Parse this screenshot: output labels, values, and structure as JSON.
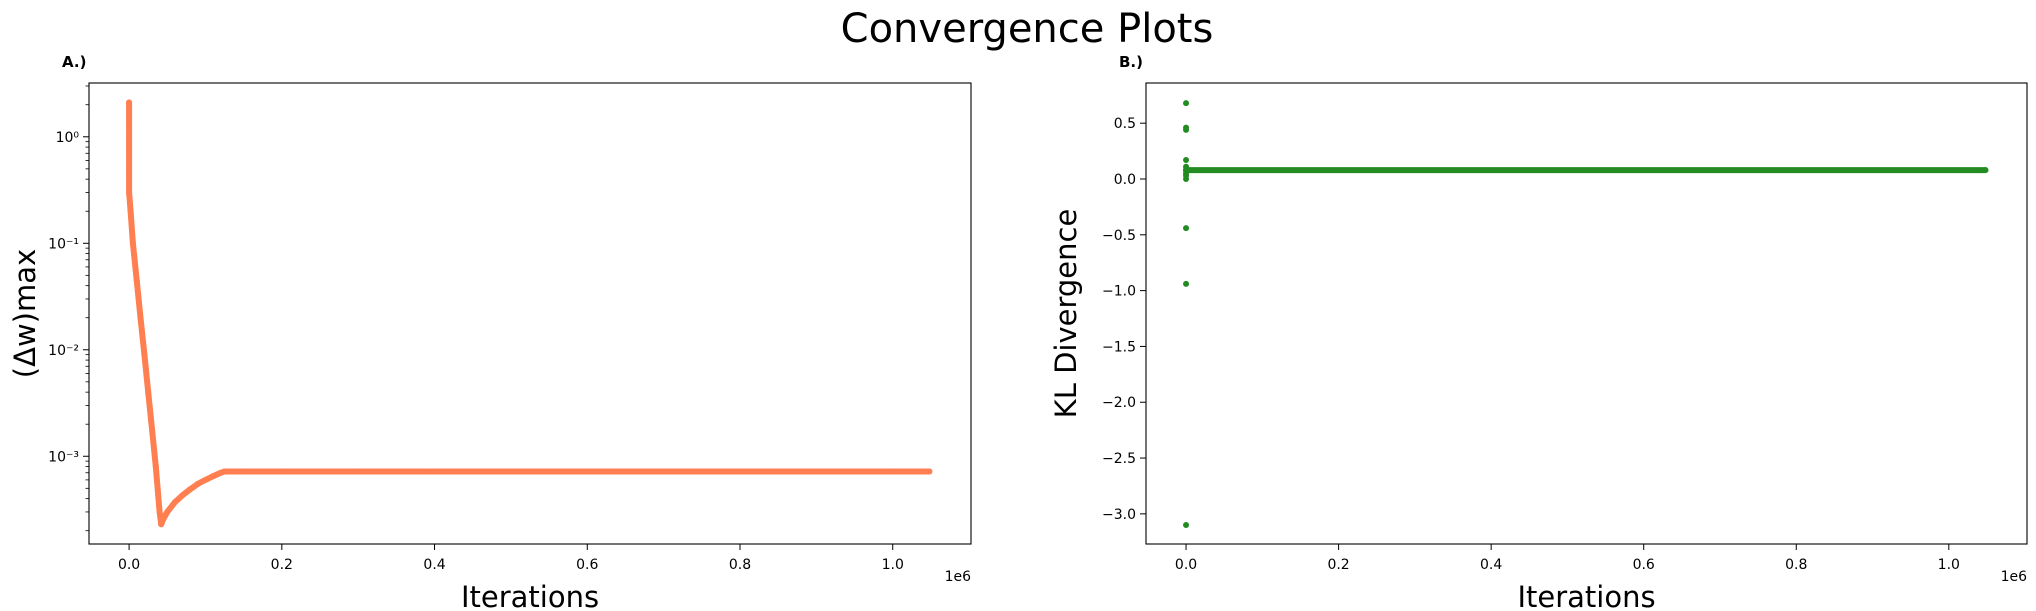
{
  "figure": {
    "title": "Convergence Plots"
  },
  "chart_data": [
    {
      "panel_label": "A.)",
      "type": "scatter",
      "title": "",
      "xlabel": "Iterations",
      "ylabel": "(Δw)max",
      "yscale": "log",
      "x_offset_text": "1e6",
      "xlim": [
        -0.0525,
        1.1025
      ],
      "ylim": [
        0.00015,
        3.2
      ],
      "xticks": [
        0.0,
        0.2,
        0.4,
        0.6,
        0.8,
        1.0
      ],
      "xtick_labels": [
        "0.0",
        "0.2",
        "0.4",
        "0.6",
        "0.8",
        "1.0"
      ],
      "yticks": [
        1,
        0.1,
        0.01,
        0.001
      ],
      "ytick_labels": [
        "10⁰",
        "10⁻¹",
        "10⁻²",
        "10⁻³"
      ],
      "color": "#ff7f50",
      "grid": false,
      "series": [
        {
          "x": [
            0.0,
            0.0,
            0.0,
            0.0,
            0.0,
            0.0,
            0.0,
            0.002,
            0.005,
            0.01,
            0.015,
            0.02,
            0.025,
            0.03,
            0.035,
            0.04,
            0.042,
            0.045,
            0.05,
            0.06,
            0.07,
            0.08,
            0.09,
            0.1,
            0.11,
            0.12,
            0.125,
            0.15,
            0.2,
            0.3,
            0.4,
            0.5,
            0.6,
            0.7,
            0.8,
            0.9,
            1.0,
            1.048
          ],
          "y": [
            2.1,
            1.7,
            1.3,
            1.0,
            0.75,
            0.5,
            0.3,
            0.2,
            0.1,
            0.045,
            0.02,
            0.009,
            0.004,
            0.0018,
            0.0008,
            0.0003,
            0.00023,
            0.00026,
            0.0003,
            0.00037,
            0.00043,
            0.00049,
            0.00055,
            0.0006,
            0.00065,
            0.0007,
            0.00072,
            0.00072,
            0.00072,
            0.00072,
            0.00072,
            0.00072,
            0.00072,
            0.00072,
            0.00072,
            0.00072,
            0.00072,
            0.00072
          ]
        }
      ]
    },
    {
      "panel_label": "B.)",
      "type": "scatter",
      "title": "",
      "xlabel": "Iterations",
      "ylabel": "KL Divergence",
      "yscale": "linear",
      "x_offset_text": "1e6",
      "xlim": [
        -0.0525,
        1.1025
      ],
      "ylim": [
        -3.27,
        0.86
      ],
      "xticks": [
        0.0,
        0.2,
        0.4,
        0.6,
        0.8,
        1.0
      ],
      "xtick_labels": [
        "0.0",
        "0.2",
        "0.4",
        "0.6",
        "0.8",
        "1.0"
      ],
      "yticks": [
        0.5,
        0.0,
        -0.5,
        -1.0,
        -1.5,
        -2.0,
        -2.5,
        -3.0
      ],
      "ytick_labels": [
        "0.5",
        "0.0",
        "−0.5",
        "−1.0",
        "−1.5",
        "−2.0",
        "−2.5",
        "−3.0"
      ],
      "color": "#228b22",
      "grid": false,
      "series": [
        {
          "x": [
            0.0,
            0.0,
            0.0,
            0.0,
            0.0,
            0.0,
            0.0,
            0.0,
            0.0,
            0.0,
            0.0,
            0.0,
            0.0,
            1.048
          ],
          "y": [
            0.68,
            0.46,
            0.44,
            0.17,
            0.11,
            0.08,
            0.05,
            0.03,
            0.0,
            -0.44,
            -0.94,
            -3.1,
            0.08,
            0.08
          ]
        }
      ]
    }
  ]
}
